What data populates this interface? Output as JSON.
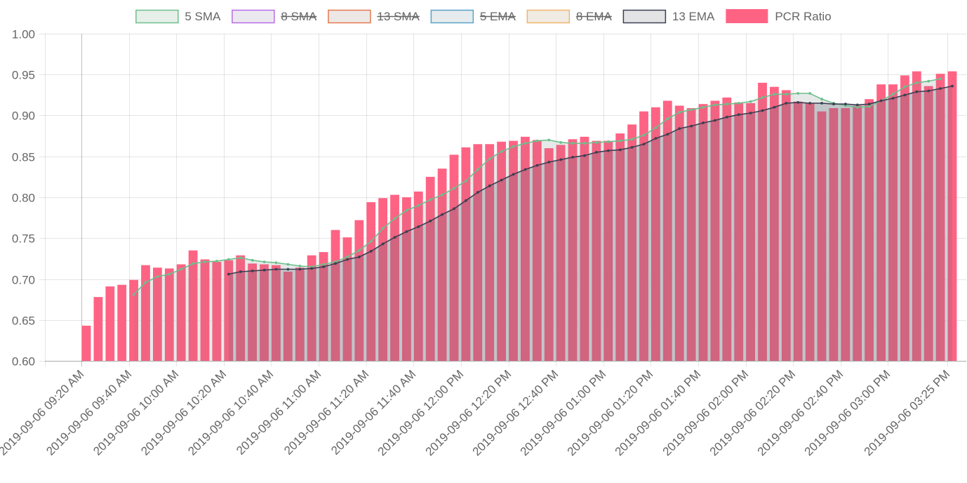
{
  "chart_data": {
    "type": "bar",
    "y_axis": {
      "min": 0.6,
      "max": 1.0,
      "step": 0.05,
      "ticks": [
        "0.60",
        "0.65",
        "0.70",
        "0.75",
        "0.80",
        "0.85",
        "0.90",
        "0.95",
        "1.00"
      ]
    },
    "x_tick_labels": [
      "2019-09-06 09:20 AM",
      "2019-09-06 09:40 AM",
      "2019-09-06 10:00 AM",
      "2019-09-06 10:20 AM",
      "2019-09-06 10:40 AM",
      "2019-09-06 11:00 AM",
      "2019-09-06 11:20 AM",
      "2019-09-06 11:40 AM",
      "2019-09-06 12:00 PM",
      "2019-09-06 12:20 PM",
      "2019-09-06 12:40 PM",
      "2019-09-06 01:00 PM",
      "2019-09-06 01:20 PM",
      "2019-09-06 01:40 PM",
      "2019-09-06 02:00 PM",
      "2019-09-06 02:20 PM",
      "2019-09-06 02:40 PM",
      "2019-09-06 03:00 PM",
      "2019-09-06 03:25 PM"
    ],
    "grid": true,
    "legend_position": "top",
    "legend": [
      {
        "label": "5 SMA",
        "hidden": false,
        "fill": "#e6efe9",
        "stroke": "#6dbf8c"
      },
      {
        "label": "8 SMA",
        "hidden": true,
        "fill": "#ece8ef",
        "stroke": "#b86ee8"
      },
      {
        "label": "13 SMA",
        "hidden": true,
        "fill": "#ede8e6",
        "stroke": "#e57a52"
      },
      {
        "label": "5 EMA",
        "hidden": true,
        "fill": "#e6ebee",
        "stroke": "#5ba2c9"
      },
      {
        "label": "8 EMA",
        "hidden": true,
        "fill": "#f0ebe3",
        "stroke": "#f2b56b"
      },
      {
        "label": "13 EMA",
        "hidden": false,
        "fill": "#e3e3e5",
        "stroke": "#3b3f52"
      },
      {
        "label": "PCR Ratio",
        "hidden": false,
        "fill": "#ff6384",
        "stroke": "#ff6384"
      }
    ],
    "series": [
      {
        "name": "PCR Ratio",
        "type": "bar",
        "color": "#ff6384",
        "values": [
          0.643,
          0.678,
          0.691,
          0.693,
          0.699,
          0.717,
          0.714,
          0.713,
          0.718,
          0.735,
          0.724,
          0.721,
          0.723,
          0.729,
          0.719,
          0.718,
          0.717,
          0.709,
          0.714,
          0.729,
          0.733,
          0.76,
          0.751,
          0.772,
          0.794,
          0.799,
          0.803,
          0.8,
          0.807,
          0.825,
          0.835,
          0.852,
          0.861,
          0.865,
          0.865,
          0.868,
          0.869,
          0.874,
          0.87,
          0.86,
          0.864,
          0.871,
          0.874,
          0.869,
          0.869,
          0.878,
          0.889,
          0.905,
          0.91,
          0.918,
          0.912,
          0.909,
          0.914,
          0.918,
          0.922,
          0.916,
          0.915,
          0.94,
          0.935,
          0.931,
          0.917,
          0.915,
          0.905,
          0.909,
          0.909,
          0.912,
          0.92,
          0.938,
          0.938,
          0.949,
          0.954,
          0.936,
          0.951,
          0.954
        ]
      },
      {
        "name": "5 SMA",
        "type": "line",
        "color": "#6dbf8c",
        "start_index": 4,
        "values": [
          0.681,
          0.696,
          0.703,
          0.706,
          0.712,
          0.719,
          0.721,
          0.722,
          0.724,
          0.726,
          0.723,
          0.721,
          0.72,
          0.718,
          0.716,
          0.715,
          0.718,
          0.721,
          0.727,
          0.735,
          0.746,
          0.762,
          0.774,
          0.784,
          0.79,
          0.797,
          0.803,
          0.811,
          0.82,
          0.834,
          0.847,
          0.856,
          0.862,
          0.866,
          0.869,
          0.87,
          0.867,
          0.866,
          0.866,
          0.867,
          0.868,
          0.869,
          0.871,
          0.876,
          0.885,
          0.896,
          0.904,
          0.907,
          0.91,
          0.913,
          0.914,
          0.915,
          0.917,
          0.922,
          0.926,
          0.926,
          0.927,
          0.927,
          0.92,
          0.915,
          0.912,
          0.91,
          0.911,
          0.918,
          0.926,
          0.935,
          0.94,
          0.942,
          0.945
        ]
      },
      {
        "name": "13 EMA",
        "type": "line",
        "color": "#3b3f52",
        "start_index": 12,
        "values": [
          0.706,
          0.709,
          0.71,
          0.711,
          0.712,
          0.712,
          0.712,
          0.713,
          0.715,
          0.719,
          0.724,
          0.727,
          0.734,
          0.743,
          0.751,
          0.758,
          0.764,
          0.771,
          0.779,
          0.786,
          0.796,
          0.806,
          0.814,
          0.821,
          0.828,
          0.834,
          0.839,
          0.843,
          0.846,
          0.849,
          0.851,
          0.855,
          0.857,
          0.858,
          0.861,
          0.865,
          0.872,
          0.877,
          0.884,
          0.887,
          0.891,
          0.894,
          0.898,
          0.901,
          0.903,
          0.906,
          0.91,
          0.915,
          0.916,
          0.915,
          0.915,
          0.914,
          0.914,
          0.913,
          0.914,
          0.918,
          0.921,
          0.925,
          0.929,
          0.93,
          0.933,
          0.936
        ]
      }
    ]
  }
}
